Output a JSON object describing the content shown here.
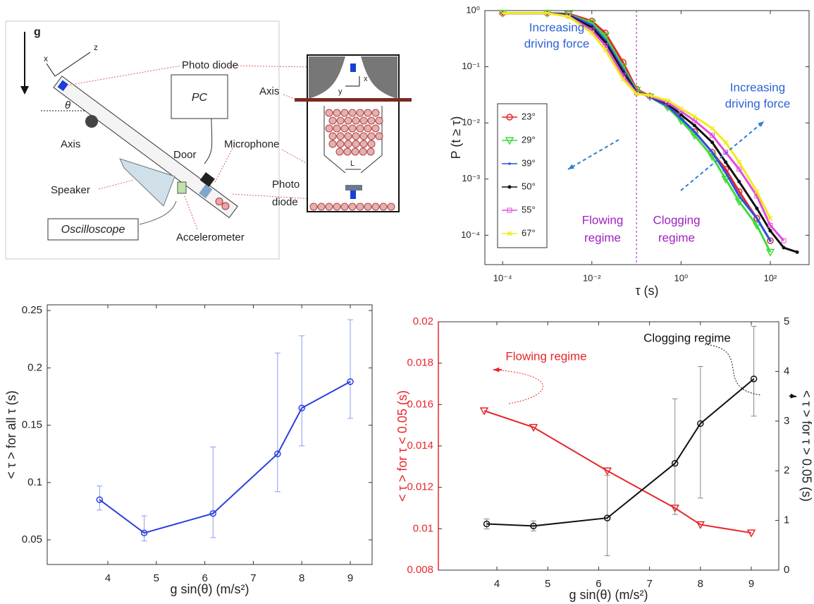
{
  "diagram": {
    "g": "g",
    "x_axis": "x",
    "z_axis": "z",
    "theta": "θ",
    "photo_diode": "Photo diode",
    "pc": "PC",
    "axis_left": "Axis",
    "door": "Door",
    "microphone": "Microphone",
    "speaker": "Speaker",
    "photo_diode_2": [
      "Photo",
      "diode"
    ],
    "oscilloscope": "Oscilloscope",
    "accelerometer": "Accelerometer",
    "axis_right": "Axis",
    "y_inset": "y",
    "x_inset": "x",
    "L": "L"
  },
  "chart_data": [
    {
      "type": "line",
      "xlabel": "τ (s)",
      "ylabel": "P (t ≥ τ)",
      "xscale": "log",
      "yscale": "log",
      "xlim": [
        4e-05,
        740
      ],
      "ylim": [
        3e-05,
        1
      ],
      "xticks": [
        {
          "value": 0.0001,
          "label": "10⁻⁴"
        },
        {
          "value": 0.01,
          "label": "10⁻²"
        },
        {
          "value": 1,
          "label": "10⁰"
        },
        {
          "value": 100,
          "label": "10²"
        }
      ],
      "yticks": [
        {
          "value": 0.0001,
          "label": "10⁻⁴"
        },
        {
          "value": 0.001,
          "label": "10⁻³"
        },
        {
          "value": 0.01,
          "label": "10⁻²"
        },
        {
          "value": 0.1,
          "label": "10⁻¹"
        },
        {
          "value": 1,
          "label": "10⁰"
        }
      ],
      "x": [
        0.0001,
        0.001,
        0.003,
        0.01,
        0.02,
        0.05,
        0.1,
        0.2,
        0.5,
        1,
        2,
        5,
        10,
        20,
        50,
        100,
        200,
        400
      ],
      "series": [
        {
          "name": "23°",
          "color": "#e8262b",
          "marker": "o",
          "values": [
            0.9,
            0.9,
            0.88,
            0.65,
            0.4,
            0.12,
            0.04,
            0.03,
            0.02,
            0.012,
            0.007,
            0.003,
            0.0015,
            0.0006,
            0.0002,
            8e-05,
            null,
            null
          ]
        },
        {
          "name": "29°",
          "color": "#3ddc3a",
          "marker": "v",
          "values": [
            0.9,
            0.9,
            0.86,
            0.6,
            0.35,
            0.1,
            0.038,
            0.029,
            0.019,
            0.011,
            0.006,
            0.0025,
            0.001,
            0.0004,
            0.00015,
            5e-05,
            null,
            null
          ]
        },
        {
          "name": "39°",
          "color": "#2b4fe8",
          "marker": ".",
          "values": [
            0.9,
            0.9,
            0.84,
            0.55,
            0.3,
            0.09,
            0.036,
            0.029,
            0.02,
            0.012,
            0.007,
            0.003,
            0.0013,
            0.0005,
            0.0002,
            8e-05,
            null,
            null
          ]
        },
        {
          "name": "50°",
          "color": "#111111",
          "marker": "*",
          "values": [
            0.9,
            0.9,
            0.82,
            0.5,
            0.27,
            0.08,
            0.035,
            0.03,
            0.022,
            0.014,
            0.009,
            0.0045,
            0.002,
            0.0009,
            0.0003,
            0.00012,
            6e-05,
            5e-05
          ]
        },
        {
          "name": "55°",
          "color": "#e04de0",
          "marker": "s",
          "values": [
            0.9,
            0.9,
            0.8,
            0.45,
            0.24,
            0.07,
            0.034,
            0.03,
            0.023,
            0.016,
            0.011,
            0.006,
            0.003,
            0.0015,
            0.0005,
            0.00015,
            8e-05,
            null
          ]
        },
        {
          "name": "67°",
          "color": "#f2ea1a",
          "marker": "x",
          "values": [
            0.9,
            0.9,
            0.78,
            0.4,
            0.2,
            0.06,
            0.033,
            0.031,
            0.025,
            0.018,
            0.013,
            0.008,
            0.0045,
            0.002,
            0.0006,
            0.0002,
            null,
            null
          ]
        }
      ],
      "legend": "left",
      "vline": 0.1,
      "vline_color": "#a020c0",
      "annotations": [
        {
          "text": [
            "Increasing",
            "driving force"
          ],
          "color": "#2a62d4"
        },
        {
          "text": [
            "Increasing",
            "driving force"
          ],
          "color": "#2a62d4"
        },
        {
          "text": [
            "Flowing",
            "regime"
          ],
          "color": "#a020c0"
        },
        {
          "text": [
            "Clogging",
            "regime"
          ],
          "color": "#a020c0"
        }
      ]
    },
    {
      "type": "line",
      "xlabel": "g sin(θ)  (m/s²)",
      "ylabel": "< τ > for all τ (s)",
      "xlim": [
        2.75,
        9.45
      ],
      "ylim": [
        0.0285,
        0.255
      ],
      "xticks": [
        4,
        5,
        6,
        7,
        8,
        9
      ],
      "yticks": [
        0.05,
        0.1,
        0.15,
        0.2,
        0.25
      ],
      "series": [
        {
          "color": "#2b3fe0",
          "marker": "o",
          "error_color": "#8c9cf0",
          "x": [
            3.83,
            4.75,
            6.17,
            7.5,
            8.0,
            9.0
          ],
          "values": [
            0.085,
            0.056,
            0.073,
            0.125,
            0.165,
            0.188
          ],
          "error_minus": [
            0.009,
            0.007,
            0.021,
            0.033,
            0.033,
            0.032
          ],
          "error_plus": [
            0.012,
            0.015,
            0.058,
            0.088,
            0.063,
            0.054
          ]
        }
      ]
    },
    {
      "type": "line",
      "xlabel": "g sin(θ)  (m/s²)",
      "ylabel": "< τ > for τ < 0.05 (s)",
      "y2label": "< τ > for τ > 0.05 (s)",
      "ycolor": "#e8262b",
      "xlim": [
        2.85,
        9.54
      ],
      "ylim": [
        0.008,
        0.02
      ],
      "y2lim": [
        0,
        5
      ],
      "xticks": [
        4,
        5,
        6,
        7,
        8,
        9
      ],
      "yticks": [
        0.008,
        0.01,
        0.012,
        0.014,
        0.016,
        0.018,
        0.02
      ],
      "y2ticks": [
        0,
        1,
        2,
        3,
        4,
        5
      ],
      "series": [
        {
          "color": "#e8262b",
          "marker": "v",
          "x": [
            3.75,
            4.72,
            6.17,
            7.5,
            8.0,
            9.0
          ],
          "values": [
            0.0157,
            0.0149,
            0.0128,
            0.011,
            0.0102,
            0.0098
          ]
        },
        {
          "color": "#111111",
          "marker": "o",
          "axis": "y2",
          "error_color": "#888888",
          "x": [
            3.8,
            4.72,
            6.17,
            7.5,
            8.0,
            9.05
          ],
          "values": [
            0.93,
            0.89,
            1.05,
            2.15,
            2.95,
            3.85
          ],
          "error_minus": [
            0.1,
            0.1,
            0.76,
            1.03,
            1.5,
            0.75
          ],
          "error_plus": [
            0.1,
            0.1,
            0.86,
            1.3,
            1.15,
            1.06
          ]
        }
      ],
      "annotations": [
        {
          "text": [
            "Flowing regime"
          ],
          "color": "#e8262b"
        },
        {
          "text": [
            "Clogging regime"
          ],
          "color": "#111111"
        }
      ]
    }
  ]
}
